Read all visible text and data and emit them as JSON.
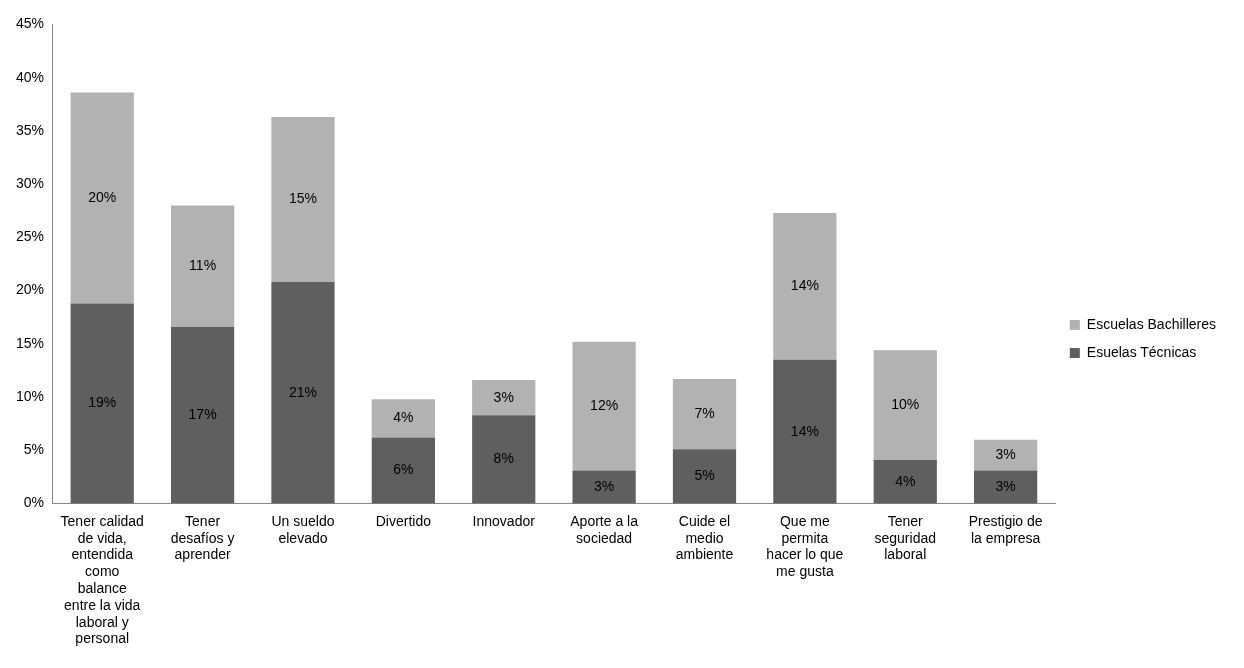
{
  "chart_data": {
    "type": "bar",
    "stacked": true,
    "legend": "right",
    "grid": false,
    "categories": [
      "Tener calidad de vida, entendida como balance entre la vida laboral y personal",
      "Tener desafíos y aprender",
      "Un sueldo elevado",
      "Divertido",
      "Innovador",
      "Aporte a la sociedad",
      "Cuide el medio ambiente",
      "Que me permita hacer lo que me gusta",
      "Tener seguridad laboral",
      "Prestigio de la empresa"
    ],
    "ylim": [
      0,
      45
    ],
    "yticks": [
      {
        "value": 0,
        "label": "0%"
      },
      {
        "value": 5,
        "label": "5%"
      },
      {
        "value": 10,
        "label": "10%"
      },
      {
        "value": 15,
        "label": "15%"
      },
      {
        "value": 20,
        "label": "20%"
      },
      {
        "value": 25,
        "label": "25%"
      },
      {
        "value": 30,
        "label": "30%"
      },
      {
        "value": 35,
        "label": "35%"
      },
      {
        "value": 40,
        "label": "40%"
      },
      {
        "value": 45,
        "label": "45%"
      }
    ],
    "series": [
      {
        "name": "Esuelas Técnicas",
        "color": "#5f5f5f",
        "values": [
          18.8,
          16.6,
          20.8,
          6.2,
          8.3,
          3.1,
          5.1,
          13.5,
          4.1,
          3.1
        ],
        "value_labels": [
          "19%",
          "17%",
          "21%",
          "6%",
          "8%",
          "3%",
          "5%",
          "14%",
          "4%",
          "3%"
        ]
      },
      {
        "name": "Escuelas Bachilleres",
        "color": "#b2b2b2",
        "values": [
          19.8,
          11.4,
          15.5,
          3.6,
          3.3,
          12.1,
          6.6,
          13.8,
          10.3,
          2.9
        ],
        "value_labels": [
          "20%",
          "11%",
          "15%",
          "4%",
          "3%",
          "12%",
          "7%",
          "14%",
          "10%",
          "3%"
        ]
      }
    ]
  }
}
